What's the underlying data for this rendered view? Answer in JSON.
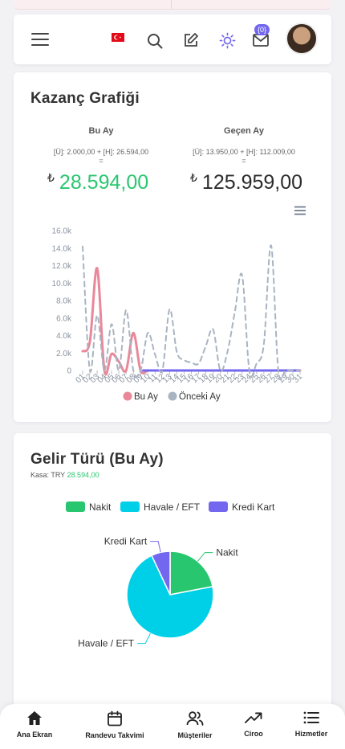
{
  "header": {
    "flag_icon": "turkey-flag-icon",
    "notification_count": "{0}"
  },
  "earnings": {
    "title": "Kazanç Grafiği",
    "this_month": {
      "label": "Bu Ay",
      "detail": "[Ü]: 2.000,00 + [H]: 26.594,00",
      "eq": "=",
      "currency": "₺",
      "total": "28.594,00",
      "color": "#28c76f"
    },
    "last_month": {
      "label": "Geçen Ay",
      "detail": "[Ü]: 13.950,00 + [H]: 112.009,00",
      "eq": "=",
      "currency": "₺",
      "total": "125.959,00",
      "color": "#2b2b2b"
    }
  },
  "chart_data": [
    {
      "type": "line",
      "x": [
        "01",
        "02",
        "03",
        "04",
        "05",
        "06",
        "07",
        "08",
        "09",
        "10",
        "11",
        "12",
        "13",
        "14",
        "15",
        "16",
        "17",
        "18",
        "19",
        "20",
        "21",
        "22",
        "23",
        "24",
        "25",
        "26",
        "27",
        "28",
        "29",
        "30",
        "31"
      ],
      "x_labels": [
        "01",
        "02",
        "03",
        "04",
        "05",
        "06",
        "07",
        "08",
        "09",
        "10",
        "11",
        "12",
        "13",
        "14",
        "15",
        "16",
        "17",
        "18",
        "19",
        "20",
        "21",
        "22",
        "23",
        "24",
        "25",
        "26",
        "27",
        "28",
        "29",
        "30",
        "31"
      ],
      "series": [
        {
          "name": "Bu Ay",
          "values": [
            2200,
            3300,
            11700,
            0,
            1900,
            1000,
            0,
            4300,
            0,
            0,
            0,
            0,
            0,
            0,
            0,
            0,
            0,
            0,
            0,
            0,
            0,
            0,
            0,
            0,
            0,
            0,
            0,
            0,
            0,
            0,
            0
          ],
          "color": "#e9889a",
          "style": "solid"
        },
        {
          "name": "Önceki Ay",
          "values": [
            14200,
            0,
            6300,
            0,
            5300,
            0,
            6900,
            0,
            0,
            4300,
            1800,
            0,
            7000,
            2100,
            1200,
            900,
            800,
            2800,
            4700,
            0,
            2200,
            6700,
            10900,
            0,
            800,
            3000,
            14300,
            0,
            0,
            0,
            0
          ],
          "color": "#a9b4c2",
          "style": "dashed"
        }
      ],
      "yticks": [
        "0",
        "2.0k",
        "4.0k",
        "6.0k",
        "8.0k",
        "10.0k",
        "12.0k",
        "14.0k",
        "16.0k"
      ],
      "ylim": [
        0,
        16000
      ],
      "legend": "bottom",
      "grid": true
    },
    {
      "type": "pie",
      "title": "Gelir Türü (Bu Ay)",
      "subtitle_label": "Kasa: TRY",
      "subtitle_value": "28.594,00",
      "categories": [
        "Nakit",
        "Havale / EFT",
        "Kredi Kart"
      ],
      "values": [
        22,
        71,
        7
      ],
      "colors": [
        "#28c76f",
        "#00cfe8",
        "#7367f0"
      ],
      "legend": "top"
    }
  ],
  "nav": {
    "items": [
      {
        "label": "Ana Ekran",
        "icon": "home-icon"
      },
      {
        "label": "Randevu Takvimi",
        "icon": "calendar-icon"
      },
      {
        "label": "Müşteriler",
        "icon": "users-icon"
      },
      {
        "label": "Ciroo",
        "icon": "trending-up-icon"
      },
      {
        "label": "Hizmetler",
        "icon": "list-icon"
      }
    ]
  }
}
